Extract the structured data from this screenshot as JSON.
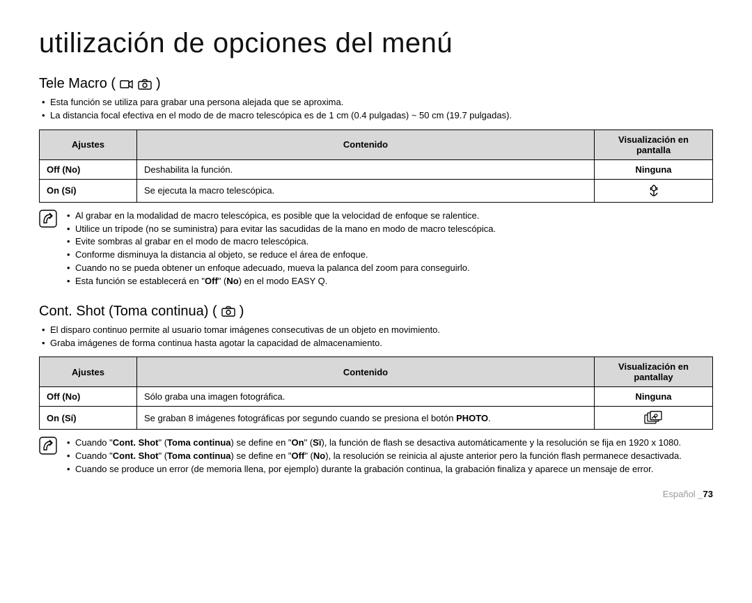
{
  "page_title": "utilización de opciones del menú",
  "footer": {
    "language": "Español _",
    "page_number": "73"
  },
  "section1": {
    "heading": "Tele Macro (",
    "heading_close": ")",
    "intro": [
      "Esta función se utiliza para grabar una persona alejada que se aproxima.",
      "La distancia focal efectiva en el modo de de macro telescópica es de 1 cm (0.4 pulgadas) ~ 50 cm (19.7 pulgadas)."
    ],
    "table": {
      "headers": {
        "settings": "Ajustes",
        "content": "Contenido",
        "display": "Visualización en pantalla"
      },
      "rows": [
        {
          "setting": "Off (No)",
          "content": "Deshabilita la función.",
          "display_text": "Ninguna"
        },
        {
          "setting": "On (Sí)",
          "content": "Se ejecuta la macro telescópica.",
          "display_icon": "tulip"
        }
      ]
    },
    "notes": [
      "Al grabar en la modalidad de macro telescópica, es posible que la velocidad de enfoque se ralentice.",
      "Utilice un trípode (no se suministra) para evitar las sacudidas de la mano en modo de macro telescópica.",
      "Evite sombras al grabar en el modo de macro telescópica.",
      "Conforme disminuya la distancia al objeto, se reduce el área de enfoque.",
      "Cuando no se pueda obtener un enfoque adecuado, mueva la palanca del zoom para conseguirlo."
    ],
    "note_last_html": "Esta función se establecerá en \"<b>Off</b>\" (<b>No</b>) en el modo EASY Q."
  },
  "section2": {
    "heading": "Cont. Shot (Toma continua) (",
    "heading_close": ")",
    "intro": [
      "El disparo continuo permite al usuario tomar imágenes consecutivas de un objeto en movimiento.",
      "Graba imágenes de forma continua hasta agotar la capacidad de almacenamiento."
    ],
    "table": {
      "headers": {
        "settings": "Ajustes",
        "content": "Contenido",
        "display": "Visualización en pantallay"
      },
      "rows": [
        {
          "setting": "Off (No)",
          "content": "Sólo graba una imagen fotográfica.",
          "display_text": "Ninguna"
        },
        {
          "setting": "On (Sí)",
          "content_html": "Se graban 8 imágenes fotográficas por segundo cuando se presiona el botón <b>PHOTO</b>.",
          "display_icon": "burst"
        }
      ]
    },
    "notes_html": [
      "Cuando \"<b>Cont. Shot</b>\" (<b>Toma continua</b>) se define en \"<b>On</b>\" (<b>Sï</b>), la función de flash se desactiva automáticamente y la resolución se fija en 1920 x 1080.",
      "Cuando \"<b>Cont. Shot</b>\" (<b>Toma continua</b>) se define en \"<b>Off</b>\" (<b>No</b>), la resolución se reinicia al ajuste anterior pero la función flash permanece desactivada.",
      "Cuando se produce un error (de memoria llena, por ejemplo) durante la grabación continua, la grabación finaliza y aparece un mensaje de error."
    ]
  }
}
